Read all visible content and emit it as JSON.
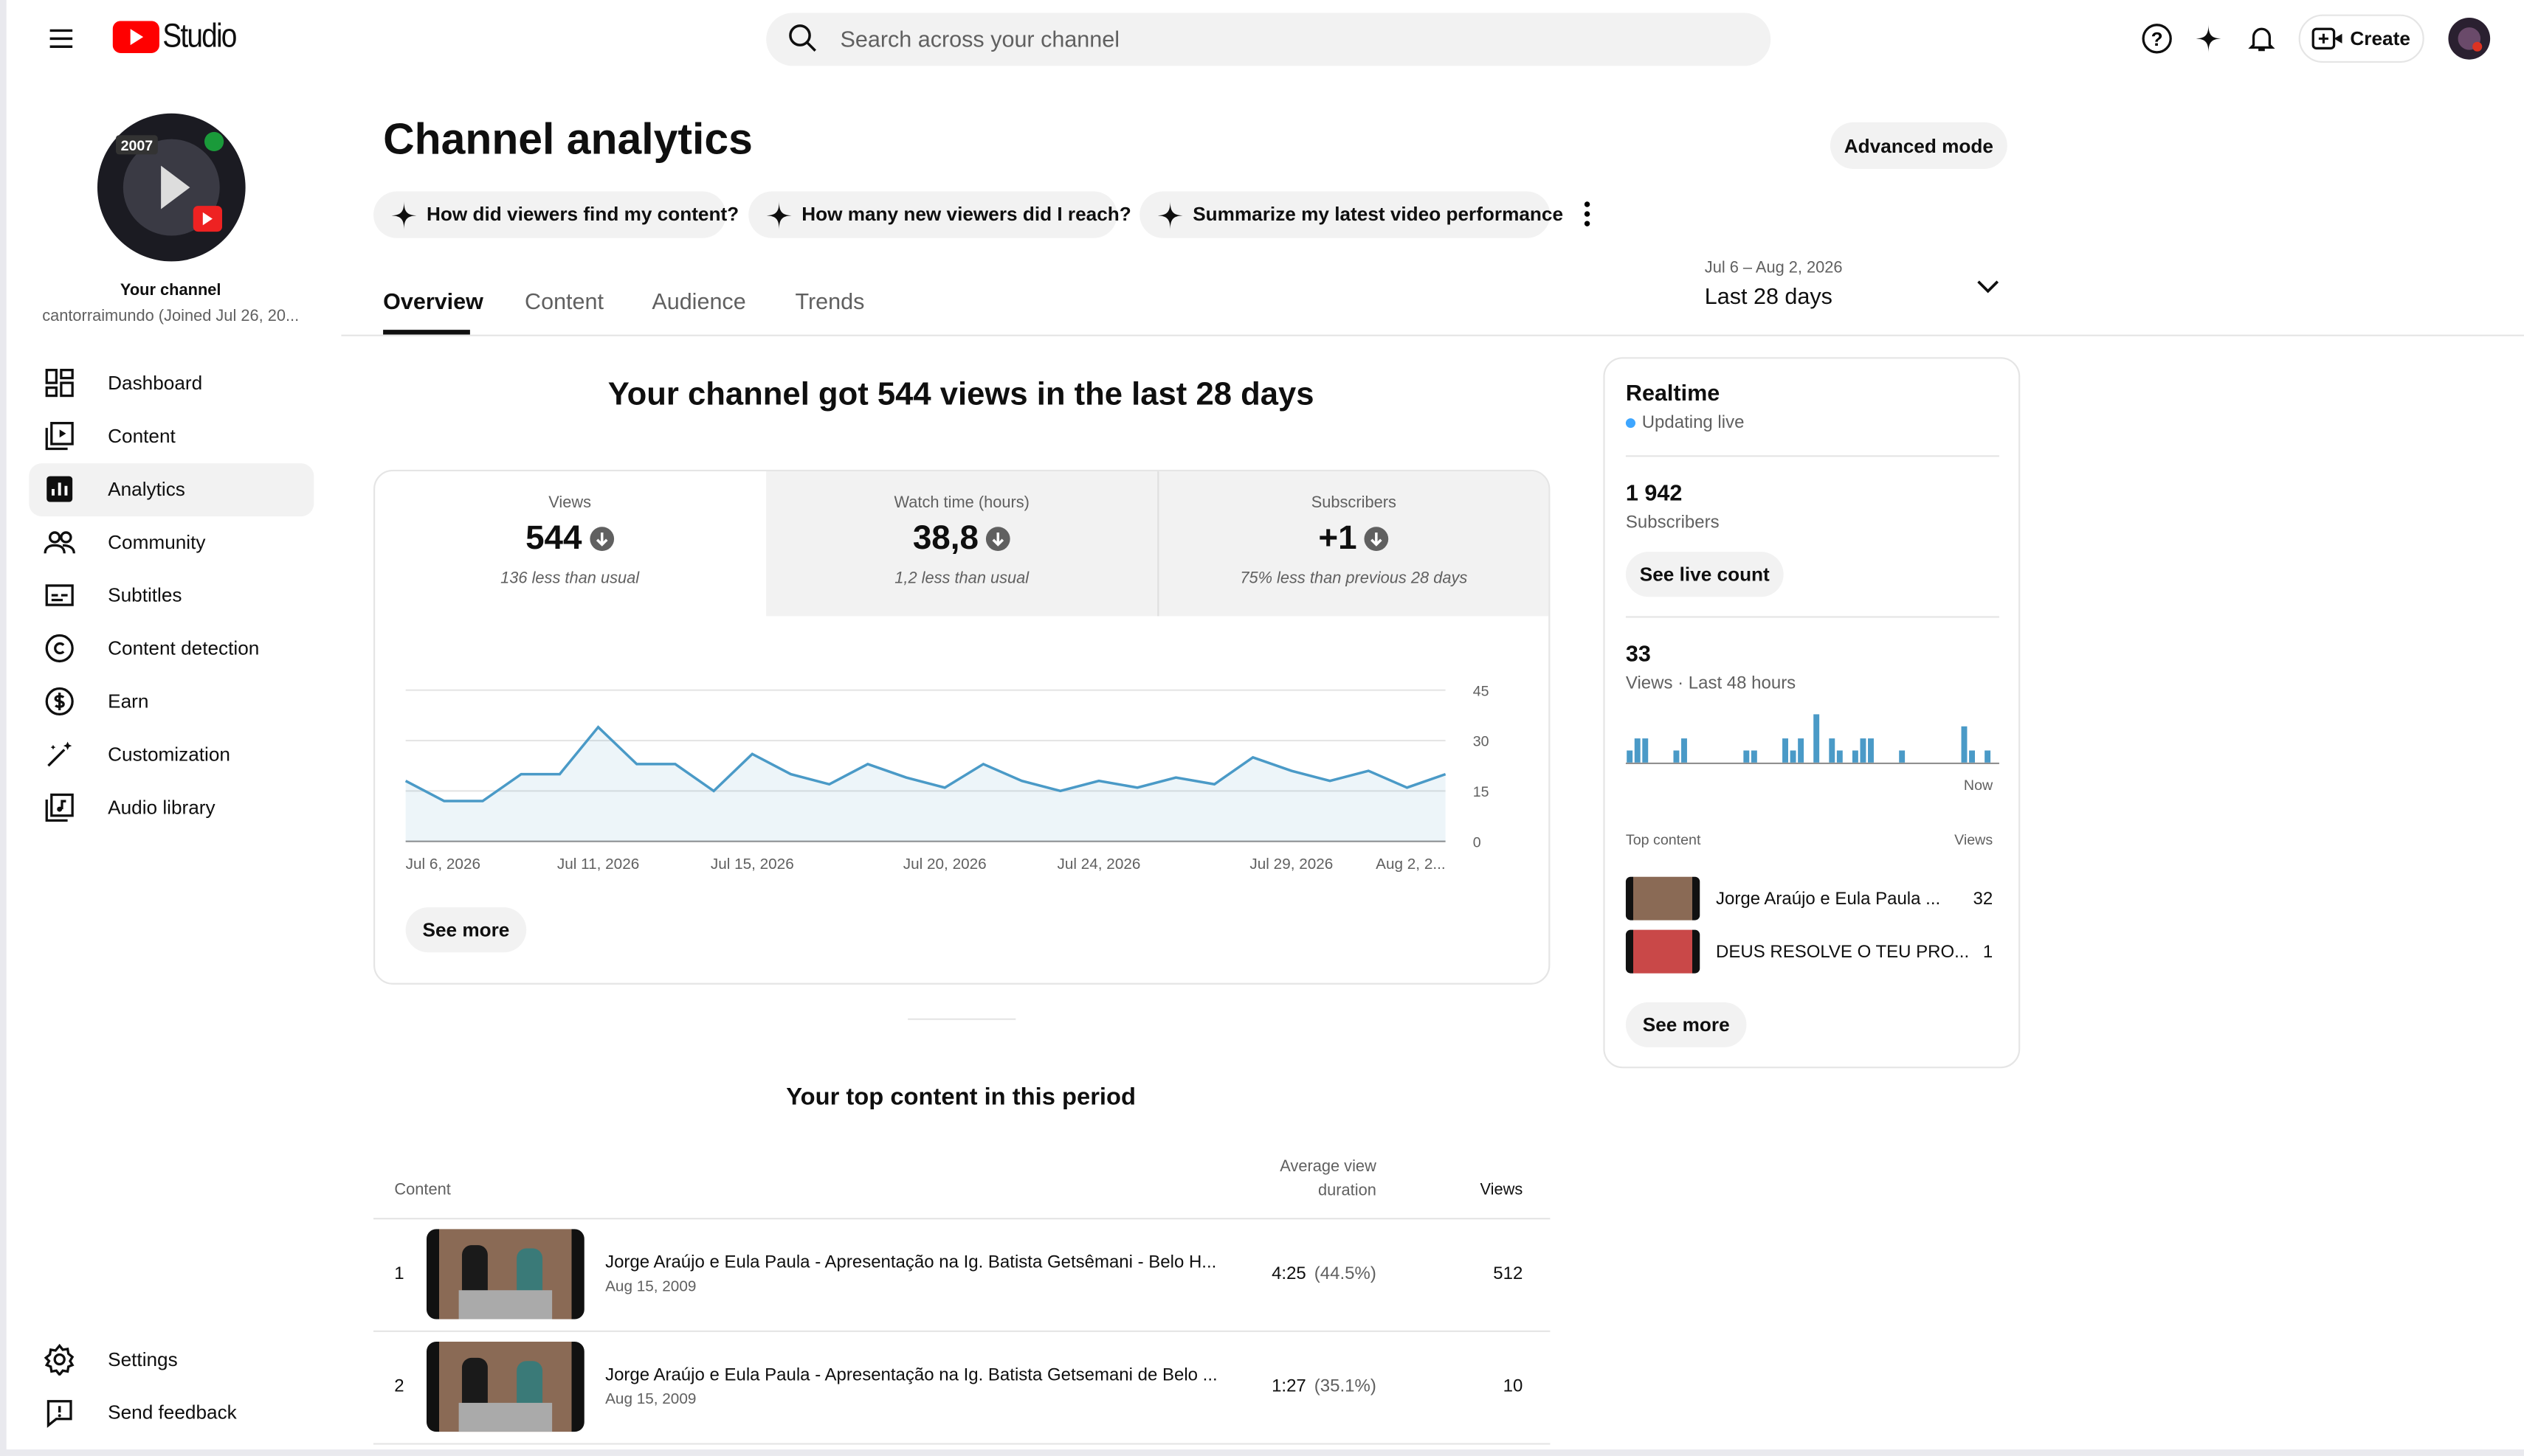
{
  "header": {
    "logo": "Studio",
    "search": "Search across your channel",
    "create": "Create"
  },
  "sidebar": {
    "channel_label": "Your channel",
    "channel_name": "cantorraimundo (Joined Jul 26, 20...",
    "nav": [
      "Dashboard",
      "Content",
      "Analytics",
      "Community",
      "Subtitles",
      "Content detection",
      "Earn",
      "Customization",
      "Audio library"
    ],
    "footer": [
      "Settings",
      "Send feedback"
    ]
  },
  "main": {
    "title": "Channel analytics",
    "advanced": "Advanced mode",
    "prompts": [
      "How did viewers find my content?",
      "How many new viewers did I reach?",
      "Summarize my latest video performance"
    ],
    "tabs": [
      "Overview",
      "Content",
      "Audience",
      "Trends"
    ],
    "date_range": "Jul 6 – Aug 2, 2026",
    "period": "Last 28 days",
    "headline": "Your channel got 544 views in the last 28 days",
    "metrics": [
      {
        "label": "Views",
        "value": "544",
        "delta": "136 less than usual"
      },
      {
        "label": "Watch time (hours)",
        "value": "38,8",
        "delta": "1,2 less than usual"
      },
      {
        "label": "Subscribers",
        "value": "+1",
        "delta": "75% less than previous 28 days"
      }
    ],
    "chart": {
      "type": "line",
      "categories": [
        "Jul 6, 2026",
        null,
        null,
        null,
        null,
        "Jul 11, 2026",
        null,
        null,
        null,
        "Jul 15, 2026",
        null,
        null,
        null,
        null,
        "Jul 20, 2026",
        null,
        null,
        null,
        "Jul 24, 2026",
        null,
        null,
        null,
        null,
        "Jul 29, 2026",
        null,
        null,
        null,
        "Aug 2, 2..."
      ],
      "values": [
        18,
        12,
        12,
        20,
        20,
        34,
        23,
        23,
        15,
        26,
        20,
        17,
        23,
        19,
        16,
        23,
        18,
        15,
        18,
        16,
        19,
        17,
        25,
        21,
        18,
        21,
        16,
        20
      ],
      "color": "#4a9ac7",
      "ylim": [
        0,
        45
      ],
      "yticks": [
        0,
        15,
        30,
        45
      ],
      "grid": true
    },
    "see_more": "See more",
    "top_title": "Your top content in this period",
    "table": {
      "headers": [
        "Content",
        "Average view duration",
        "Views"
      ],
      "rows": [
        {
          "rank": "1",
          "title": "Jorge Araújo e Eula Paula - Apresentação na Ig. Batista Getsêmani - Belo H...",
          "date": "Aug 15, 2009",
          "duration": "4:25",
          "percent": "(44.5%)",
          "views": "512"
        },
        {
          "rank": "2",
          "title": "Jorge Araújo e Eula Paula - Apresentação na Ig. Batista Getsemani de Belo ...",
          "date": "Aug 15, 2009",
          "duration": "1:27",
          "percent": "(35.1%)",
          "views": "10"
        }
      ]
    }
  },
  "realtime": {
    "title": "Realtime",
    "status": "Updating live",
    "subscribers": "1 942",
    "subscribers_label": "Subscribers",
    "live_count": "See live count",
    "views": "33",
    "views_label": "Views · Last 48 hours",
    "chart": {
      "type": "bar",
      "color": "#4a9ac7",
      "values": [
        1,
        2,
        2,
        0,
        0,
        0,
        1,
        2,
        0,
        0,
        0,
        0,
        0,
        0,
        0,
        1,
        1,
        0,
        0,
        0,
        2,
        1,
        2,
        0,
        4,
        0,
        2,
        1,
        0,
        1,
        2,
        2,
        0,
        0,
        0,
        1,
        0,
        0,
        0,
        0,
        0,
        0,
        0,
        3,
        1,
        0,
        1,
        0
      ]
    },
    "now": "Now",
    "top_label": "Top content",
    "views_col": "Views",
    "items": [
      {
        "title": "Jorge Araújo e Eula Paula ...",
        "views": "32"
      },
      {
        "title": "DEUS RESOLVE O TEU PRO...",
        "views": "1"
      }
    ],
    "see_more": "See more"
  }
}
